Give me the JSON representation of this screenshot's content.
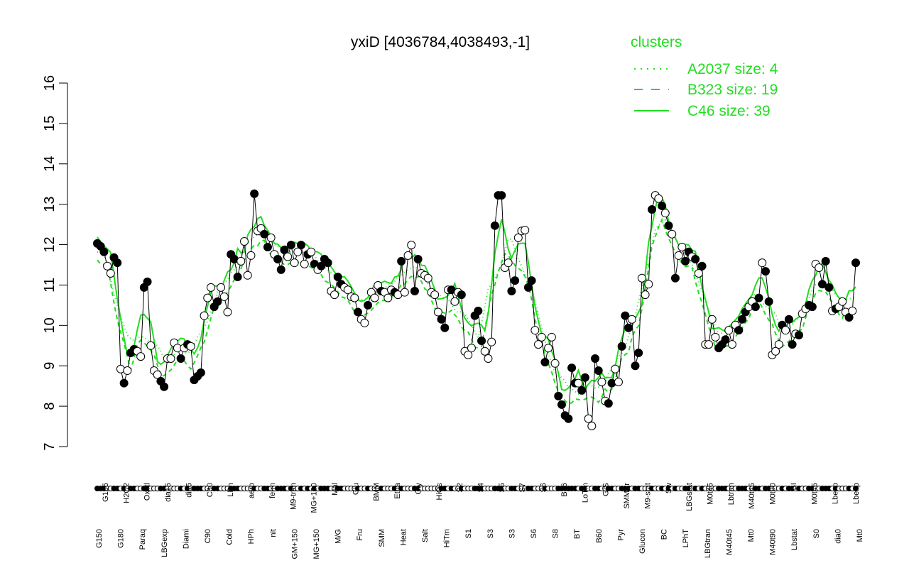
{
  "chart_data": {
    "type": "line",
    "title": "yxiD [4036784,4038493,-1]",
    "xlabel": "",
    "ylabel": "",
    "ylim": [
      7,
      16
    ],
    "yticks": [
      7,
      8,
      9,
      10,
      11,
      12,
      13,
      14,
      15,
      16
    ],
    "grid": false,
    "legend": {
      "title": "clusters",
      "placement": "top-right",
      "entries": [
        {
          "label": "A2037 size: 4",
          "style": "dotted"
        },
        {
          "label": "B323 size: 19",
          "style": "dashed"
        },
        {
          "label": "C46 size: 39",
          "style": "solid"
        }
      ]
    },
    "colors": {
      "clusters": "#22dd22",
      "points": "#000000"
    },
    "x_labels_upper": [
      "G135",
      "H2O2",
      "Oxctl",
      "dia15",
      "dia5",
      "C30",
      "LPh",
      "aero",
      "ferm",
      "M9-tran",
      "MG+120",
      "Mal",
      "Glu",
      "BMM",
      "Etha",
      "Gly",
      "HiOs",
      "S2",
      "S4",
      "S5",
      "S7",
      "S6",
      "B36",
      "LoTm",
      "G/S",
      "SMMPr",
      "M9-stat",
      "Sw",
      "LBGstat",
      "M0t45",
      "Lbtran",
      "M40t45",
      "M0t90",
      "BI",
      "M0t45",
      "Lbexp",
      "Lbexp"
    ],
    "x_labels_lower": [
      "G150",
      "G180",
      "Paraq",
      "LBGexp",
      "Diami",
      "C90",
      "Cold",
      "HPh",
      "nit",
      "GM+150",
      "MG+150",
      "M/G",
      "Fru",
      "SMM",
      "Heat",
      "Salt",
      "HiTm",
      "S1",
      "S3",
      "S3",
      "S6",
      "S8",
      "BT",
      "B60",
      "Pyr",
      "Glucon",
      "BC",
      "LPhT",
      "LBGtran",
      "M40t45",
      "Mt0",
      "M40t90",
      "Lbstat",
      "S0",
      "dia0",
      "Mt0"
    ],
    "series": [
      {
        "values": [
          12.03,
          11.96,
          11.82,
          11.47,
          11.29,
          11.68,
          11.55,
          8.92,
          8.57,
          8.88,
          9.32,
          9.41,
          9.36,
          9.23,
          10.94,
          11.08,
          9.5,
          8.88,
          8.78,
          8.62,
          8.48,
          9.18,
          9.18,
          9.57,
          9.44,
          9.18,
          9.44,
          9.53,
          9.48,
          8.65,
          8.74,
          8.83,
          10.24,
          10.68,
          10.94,
          10.46,
          10.59,
          10.94,
          10.71,
          10.33,
          11.76,
          11.64,
          11.2,
          11.59,
          12.08,
          11.24,
          11.73,
          13.26,
          12.34,
          12.4,
          12.26,
          11.94,
          12.17,
          11.76,
          11.64,
          11.38,
          11.87,
          11.7,
          11.99,
          11.55,
          11.82,
          11.99,
          11.52,
          11.76,
          11.82,
          11.52,
          11.38,
          11.47,
          11.64,
          11.55,
          10.85,
          10.76,
          11.2,
          11.02,
          10.94,
          10.88,
          10.71,
          10.68,
          10.33,
          10.15,
          10.06,
          10.5,
          10.82,
          10.68,
          10.99,
          10.85,
          10.82,
          10.68,
          10.88,
          10.82,
          10.76,
          11.59,
          10.82,
          11.73,
          11.99,
          10.85,
          11.64,
          11.29,
          11.24,
          11.17,
          10.82,
          10.76,
          10.33,
          10.15,
          9.94,
          10.88,
          10.88,
          10.59,
          10.82,
          10.76,
          9.36,
          9.27,
          9.44,
          10.24,
          10.36,
          9.62,
          9.36,
          9.18,
          9.59,
          12.47,
          13.22,
          13.22,
          11.43,
          11.55,
          10.85,
          11.11,
          12.17,
          12.34,
          12.36,
          10.94,
          11.11,
          9.88,
          9.53,
          9.71,
          9.09,
          9.44,
          9.71,
          9.06,
          8.25,
          8.04,
          7.77,
          7.69,
          8.95,
          8.57,
          8.57,
          8.39,
          8.71,
          7.69,
          7.51,
          9.18,
          8.88,
          8.6,
          8.13,
          8.07,
          8.57,
          8.92,
          8.6,
          9.48,
          10.24,
          9.94,
          10.15,
          9.0,
          9.32,
          11.17,
          10.76,
          11.02,
          12.87,
          13.22,
          13.14,
          12.96,
          12.78,
          12.47,
          12.26,
          11.17,
          11.73,
          11.94,
          11.59,
          11.82,
          11.7,
          11.64,
          11.29,
          11.47,
          9.53,
          9.53,
          10.15,
          9.71,
          9.44,
          9.53,
          9.65,
          9.88,
          9.53,
          10.01,
          9.88,
          10.15,
          10.33,
          10.46,
          10.59,
          10.46,
          10.68,
          11.55,
          11.34,
          10.59,
          9.27,
          9.36,
          9.53,
          10.01,
          9.88,
          10.15,
          9.53,
          9.79,
          9.76,
          10.29,
          10.41,
          10.5,
          10.46,
          11.52,
          11.43,
          11.02,
          11.59,
          10.94,
          10.36,
          10.41,
          10.46,
          10.59,
          10.33,
          10.2,
          10.36,
          11.55
        ],
        "filled": [
          1,
          1,
          1,
          0,
          0,
          1,
          1,
          0,
          1,
          0,
          1,
          1,
          0,
          0,
          1,
          1,
          0,
          0,
          0,
          1,
          1,
          0,
          0,
          0,
          0,
          1,
          0,
          1,
          0,
          1,
          1,
          1,
          0,
          0,
          0,
          1,
          1,
          0,
          0,
          0,
          1,
          1,
          1,
          0,
          0,
          0,
          0,
          1,
          0,
          0,
          1,
          1,
          0,
          0,
          1,
          1,
          1,
          0,
          1,
          0,
          0,
          1,
          0,
          1,
          0,
          1,
          0,
          1,
          1,
          1,
          0,
          0,
          1,
          1,
          0,
          0,
          0,
          0,
          1,
          0,
          0,
          1,
          0,
          0,
          0,
          1,
          0,
          0,
          0,
          1,
          0,
          1,
          0,
          0,
          0,
          1,
          1,
          0,
          0,
          0,
          0,
          0,
          0,
          1,
          1,
          0,
          1,
          0,
          0,
          1,
          0,
          0,
          0,
          1,
          1,
          1,
          0,
          0,
          0,
          1,
          1,
          1,
          0,
          0,
          1,
          1,
          0,
          0,
          0,
          1,
          1,
          0,
          0,
          0,
          1,
          0,
          0,
          0,
          1,
          1,
          1,
          1,
          1,
          1,
          0,
          1,
          1,
          0,
          0,
          1,
          1,
          0,
          0,
          1,
          1,
          0,
          0,
          1,
          1,
          1,
          0,
          1,
          1,
          0,
          0,
          0,
          1,
          0,
          0,
          1,
          0,
          1,
          0,
          1,
          0,
          0,
          1,
          1,
          0,
          1,
          0,
          1,
          0,
          0,
          0,
          0,
          1,
          1,
          1,
          0,
          0,
          0,
          1,
          1,
          1,
          0,
          0,
          1,
          1,
          0,
          1,
          1,
          0,
          0,
          0,
          1,
          0,
          1,
          1,
          0,
          1,
          0,
          0,
          1,
          1,
          0,
          0,
          1,
          1,
          1,
          0,
          1,
          0,
          0,
          0,
          1,
          0,
          1
        ]
      }
    ]
  }
}
